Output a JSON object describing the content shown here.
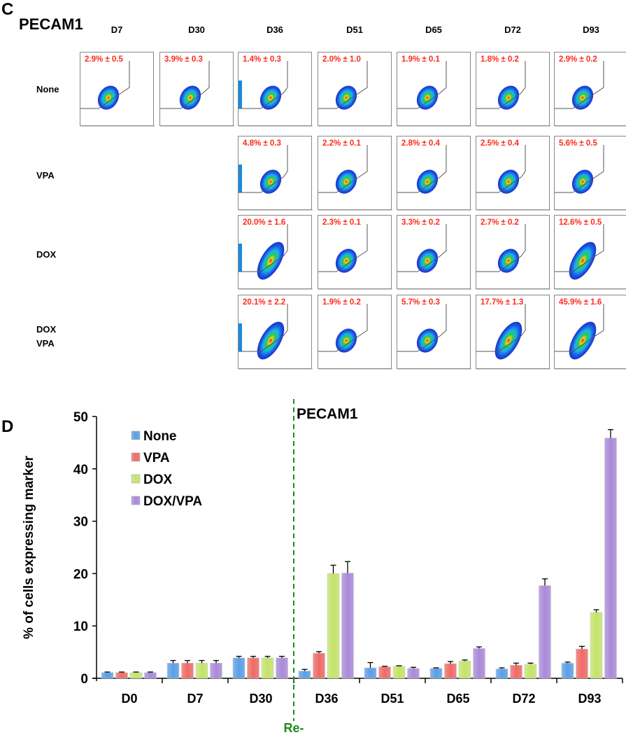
{
  "panel_c": {
    "letter": "C",
    "marker": "PECAM1",
    "columns": [
      "D7",
      "D30",
      "D36",
      "D51",
      "D65",
      "D72",
      "D93"
    ],
    "rows": [
      {
        "label": [
          "None"
        ],
        "cells": [
          "2.9% ± 0.5",
          "3.9% ± 0.3",
          "1.4% ± 0.3",
          "2.0% ± 1.0",
          "1.9% ± 0.1",
          "1.8% ± 0.2",
          "2.9% ± 0.2"
        ]
      },
      {
        "label": [
          "VPA"
        ],
        "cells": [
          null,
          null,
          "4.8% ± 0.3",
          "2.2% ± 0.1",
          "2.8% ± 0.4",
          "2.5% ± 0.4",
          "5.6% ± 0.5"
        ]
      },
      {
        "label": [
          "DOX"
        ],
        "cells": [
          null,
          null,
          "20.0% ± 1.6",
          "2.3% ± 0.1",
          "3.3% ± 0.2",
          "2.7% ± 0.2",
          "12.6% ± 0.5"
        ]
      },
      {
        "label": [
          "DOX",
          "VPA"
        ],
        "cells": [
          null,
          null,
          "20.1% ± 2.2",
          "1.9% ± 0.2",
          "5.7% ± 0.3",
          "17.7% ± 1.3",
          "45.9% ± 1.6"
        ]
      }
    ]
  },
  "panel_d": {
    "letter": "D",
    "annotation": "Re-induction"
  },
  "colors": {
    "None": "#5b9ee6",
    "VPA": "#ee6b66",
    "DOX": "#c4e36a",
    "DOX/VPA": "#a98ad9",
    "gate_text": "#ff2a1a",
    "reinduction": "#1f8a1f"
  },
  "chart_data": {
    "type": "bar",
    "title": "PECAM1",
    "xlabel": "",
    "ylabel": "% of cells expressing marker",
    "ylim": [
      0,
      50
    ],
    "yticks": [
      0,
      10,
      20,
      30,
      40,
      50
    ],
    "legend_position": "top-left",
    "categories": [
      "D0",
      "D7",
      "D30",
      "D36",
      "D51",
      "D65",
      "D72",
      "D93"
    ],
    "series": [
      {
        "name": "None",
        "values": [
          1.1,
          2.9,
          3.9,
          1.4,
          2.0,
          1.9,
          1.8,
          2.9
        ],
        "errors": [
          0.1,
          0.5,
          0.3,
          0.3,
          1.0,
          0.1,
          0.2,
          0.2
        ]
      },
      {
        "name": "VPA",
        "values": [
          1.1,
          2.9,
          3.9,
          4.8,
          2.2,
          2.8,
          2.5,
          5.6
        ],
        "errors": [
          0.1,
          0.5,
          0.3,
          0.3,
          0.1,
          0.4,
          0.4,
          0.5
        ]
      },
      {
        "name": "DOX",
        "values": [
          1.1,
          2.9,
          3.9,
          20.0,
          2.3,
          3.3,
          2.7,
          12.6
        ],
        "errors": [
          0.1,
          0.5,
          0.3,
          1.6,
          0.1,
          0.2,
          0.2,
          0.5
        ]
      },
      {
        "name": "DOX/VPA",
        "values": [
          1.1,
          2.9,
          3.9,
          20.1,
          1.9,
          5.7,
          17.7,
          45.9
        ],
        "errors": [
          0.1,
          0.5,
          0.3,
          2.2,
          0.2,
          0.3,
          1.3,
          1.6
        ]
      }
    ],
    "vertical_marker": {
      "between": [
        "D30",
        "D36"
      ],
      "label": "Re-induction",
      "style": "dashed"
    }
  }
}
